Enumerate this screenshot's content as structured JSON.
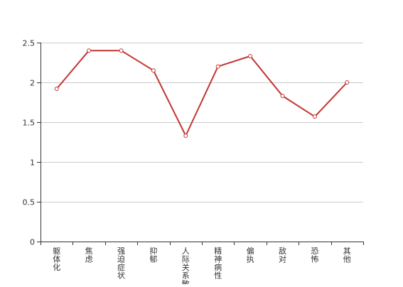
{
  "chart_data": {
    "type": "line",
    "categories": [
      "躯体化",
      "焦虑",
      "强迫症状",
      "抑郁",
      "人际关系敏感",
      "精神病性",
      "偏执",
      "敌对",
      "恐怖",
      "其他"
    ],
    "series": [
      {
        "values": [
          1.92,
          2.4,
          2.4,
          2.15,
          1.33,
          2.2,
          2.33,
          1.83,
          1.57,
          2.0
        ]
      }
    ],
    "ylim": [
      0,
      2.5
    ],
    "yticks": [
      "0",
      "0.5",
      "1",
      "1.5",
      "2",
      "2.5"
    ],
    "grid": true,
    "line_color": "#c23531"
  }
}
